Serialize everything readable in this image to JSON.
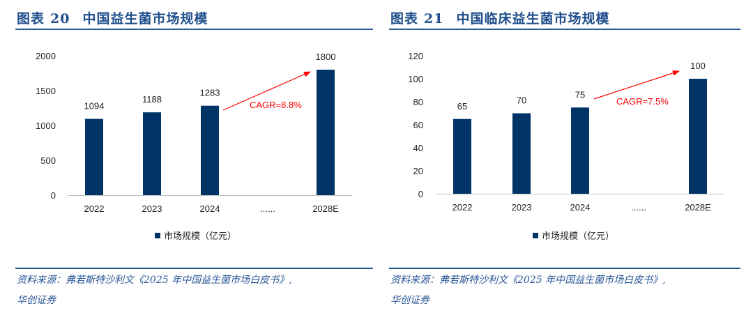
{
  "panels": [
    {
      "label": "图表",
      "number": "20",
      "title": "中国益生菌市场规模",
      "source_line1": "资料来源：弗若斯特沙利文《2025 年中国益生菌市场白皮书》,",
      "source_line2": "华创证券"
    },
    {
      "label": "图表",
      "number": "21",
      "title": "中国临床益生菌市场规模",
      "source_line1": "资料来源：弗若斯特沙利文《2025 年中国益生菌市场白皮书》,",
      "source_line2": "华创证券"
    }
  ],
  "colors": {
    "bar": "#003366",
    "cagr": "#ff0000",
    "title": "#1f4e8c"
  },
  "chart_data": [
    {
      "type": "bar",
      "title": "中国益生菌市场规模",
      "categories": [
        "2022",
        "2023",
        "2024",
        "......",
        "2028E"
      ],
      "values": [
        1094,
        1188,
        1283,
        null,
        1800
      ],
      "data_labels": [
        "1094",
        "1188",
        "1283",
        "",
        "1800"
      ],
      "ylim": [
        0,
        2000
      ],
      "yticks": [
        "0",
        "500",
        "1000",
        "1500",
        "2000"
      ],
      "ytick_values": [
        0,
        500,
        1000,
        1500,
        2000
      ],
      "legend": "市场规模（亿元）",
      "legend_position": "bottom",
      "annotation": "CAGR=8.8%",
      "grid": false
    },
    {
      "type": "bar",
      "title": "中国临床益生菌市场规模",
      "categories": [
        "2022",
        "2023",
        "2024",
        "......",
        "2028E"
      ],
      "values": [
        65,
        70,
        75,
        null,
        100
      ],
      "data_labels": [
        "65",
        "70",
        "75",
        "",
        "100"
      ],
      "ylim": [
        0,
        120
      ],
      "yticks": [
        "0",
        "20",
        "40",
        "60",
        "80",
        "100",
        "120"
      ],
      "ytick_values": [
        0,
        20,
        40,
        60,
        80,
        100,
        120
      ],
      "legend": "市场规模（亿元）",
      "legend_position": "bottom",
      "annotation": "CAGR=7.5%",
      "grid": false
    }
  ]
}
